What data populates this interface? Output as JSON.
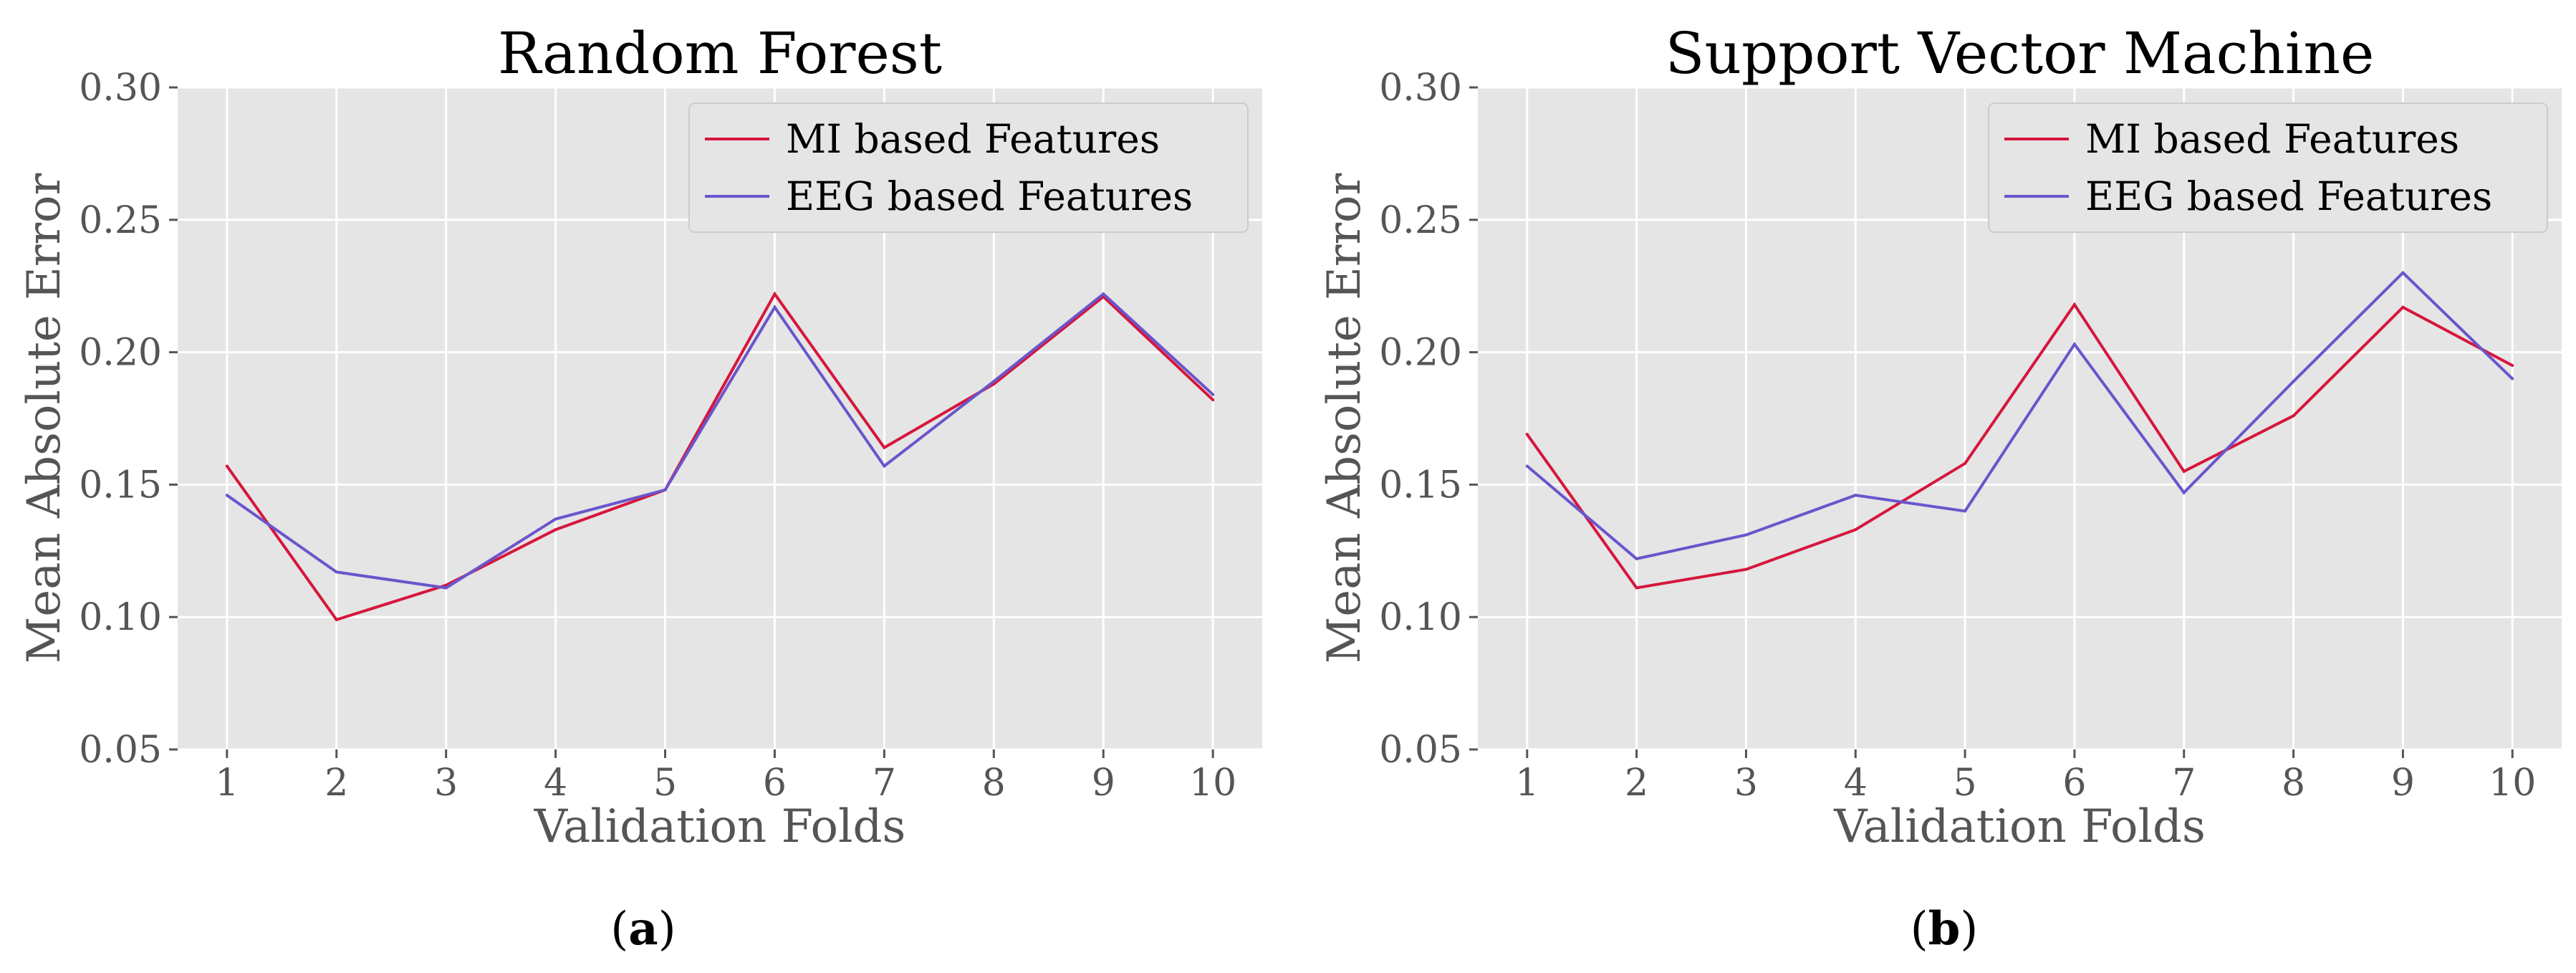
{
  "chart_data": [
    {
      "type": "line",
      "panel_label": "a",
      "title": "Random Forest",
      "xlabel": "Validation Folds",
      "ylabel": "Mean Absolute Error",
      "x": [
        1,
        2,
        3,
        4,
        5,
        6,
        7,
        8,
        9,
        10
      ],
      "xlim": [
        0.55,
        10.45
      ],
      "ylim": [
        0.05,
        0.3
      ],
      "yticks": [
        0.05,
        0.1,
        0.15,
        0.2,
        0.25,
        0.3
      ],
      "ytick_labels": [
        "0.05",
        "0.10",
        "0.15",
        "0.20",
        "0.25",
        "0.30"
      ],
      "xtick_labels": [
        "1",
        "2",
        "3",
        "4",
        "5",
        "6",
        "7",
        "8",
        "9",
        "10"
      ],
      "grid": true,
      "legend_position": "upper right",
      "series": [
        {
          "name": "MI based Features",
          "color": "#d6163c",
          "values": [
            0.157,
            0.099,
            0.112,
            0.133,
            0.148,
            0.222,
            0.164,
            0.188,
            0.221,
            0.182
          ]
        },
        {
          "name": "EEG based Features",
          "color": "#6a55cc",
          "values": [
            0.146,
            0.117,
            0.111,
            0.137,
            0.148,
            0.217,
            0.157,
            0.189,
            0.222,
            0.184
          ]
        }
      ]
    },
    {
      "type": "line",
      "panel_label": "b",
      "title": "Support Vector Machine",
      "xlabel": "Validation Folds",
      "ylabel": "Mean Absolute Error",
      "x": [
        1,
        2,
        3,
        4,
        5,
        6,
        7,
        8,
        9,
        10
      ],
      "xlim": [
        0.55,
        10.45
      ],
      "ylim": [
        0.05,
        0.3
      ],
      "yticks": [
        0.05,
        0.1,
        0.15,
        0.2,
        0.25,
        0.3
      ],
      "ytick_labels": [
        "0.05",
        "0.10",
        "0.15",
        "0.20",
        "0.25",
        "0.30"
      ],
      "xtick_labels": [
        "1",
        "2",
        "3",
        "4",
        "5",
        "6",
        "7",
        "8",
        "9",
        "10"
      ],
      "grid": true,
      "legend_position": "upper right",
      "series": [
        {
          "name": "MI based Features",
          "color": "#d6163c",
          "values": [
            0.169,
            0.111,
            0.118,
            0.133,
            0.158,
            0.218,
            0.155,
            0.176,
            0.217,
            0.195
          ]
        },
        {
          "name": "EEG based Features",
          "color": "#6a55cc",
          "values": [
            0.157,
            0.122,
            0.131,
            0.146,
            0.14,
            0.203,
            0.147,
            0.189,
            0.23,
            0.19
          ]
        }
      ]
    }
  ]
}
